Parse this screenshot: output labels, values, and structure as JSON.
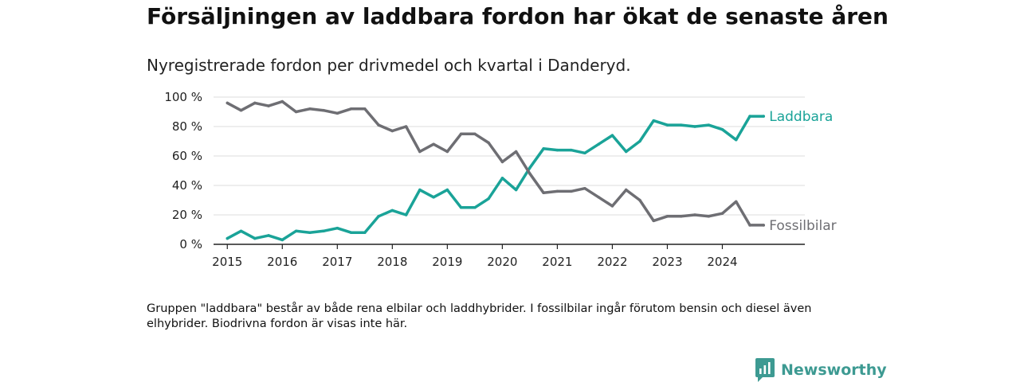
{
  "page": {
    "title": "Försäljningen av laddbara fordon har ökat de senaste åren",
    "subtitle": "Nyregistrerade fordon per drivmedel och kvartal i Danderyd.",
    "note": "Gruppen \"laddbara\" består av både rena elbilar och laddhybrider. I fossilbilar ingår förutom bensin och diesel även elhybrider. Biodrivna fordon är visas inte här.",
    "brand": "Newsworthy"
  },
  "chart_data": {
    "type": "line",
    "title": "Försäljningen av laddbara fordon har ökat de senaste åren",
    "subtitle": "Nyregistrerade fordon per drivmedel och kvartal i Danderyd.",
    "xlabel": "",
    "ylabel": "",
    "x_start": 2015,
    "x_step": 0.25,
    "xlim": [
      2014.75,
      2025.5
    ],
    "ylim": [
      0,
      100
    ],
    "x_ticks": [
      2015,
      2016,
      2017,
      2018,
      2019,
      2020,
      2021,
      2022,
      2023,
      2024
    ],
    "y_ticks": [
      {
        "value": 0,
        "label": "0 %"
      },
      {
        "value": 20,
        "label": "20 %"
      },
      {
        "value": 40,
        "label": "40 %"
      },
      {
        "value": 60,
        "label": "60 %"
      },
      {
        "value": 80,
        "label": "80 %"
      },
      {
        "value": 100,
        "label": "100 %"
      }
    ],
    "grid": true,
    "legend": "direct labels at line ends",
    "series": [
      {
        "name": "Laddbara",
        "color": "#1aa398",
        "values": [
          4,
          9,
          4,
          6,
          3,
          9,
          8,
          9,
          11,
          8,
          8,
          19,
          23,
          20,
          37,
          32,
          37,
          25,
          25,
          31,
          45,
          37,
          52,
          65,
          64,
          64,
          62,
          68,
          74,
          63,
          70,
          84,
          81,
          81,
          80,
          81,
          78,
          71,
          87,
          87
        ]
      },
      {
        "name": "Fossilbilar",
        "color": "#6e6e73",
        "values": [
          96,
          91,
          96,
          94,
          97,
          90,
          92,
          91,
          89,
          92,
          92,
          81,
          77,
          80,
          63,
          68,
          63,
          75,
          75,
          69,
          56,
          63,
          48,
          35,
          36,
          36,
          38,
          32,
          26,
          37,
          30,
          16,
          19,
          19,
          20,
          19,
          21,
          29,
          13,
          13
        ]
      }
    ]
  }
}
